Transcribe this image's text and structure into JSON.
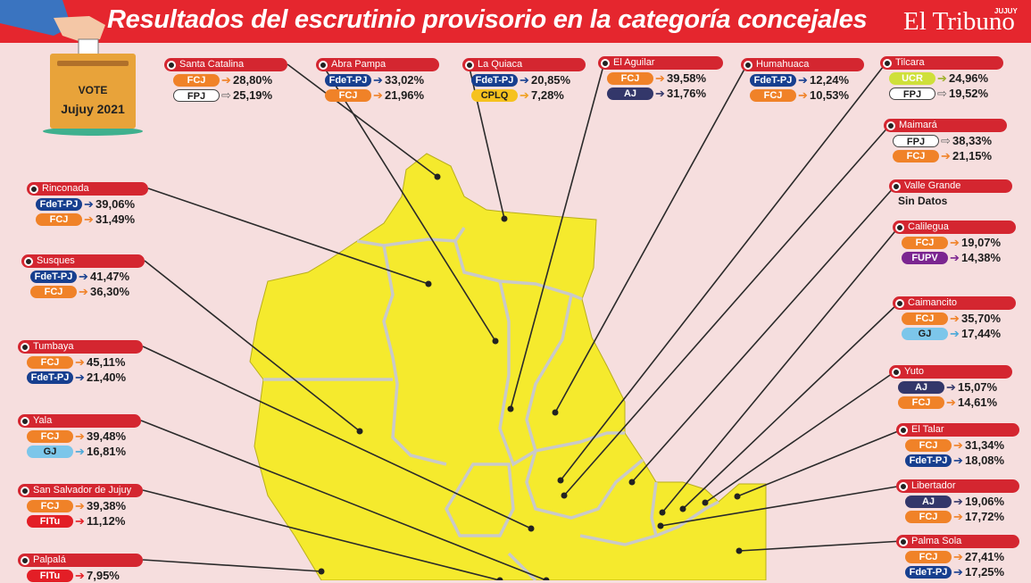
{
  "header": {
    "title": "Resultados del escrutinio provisorio en la categoría concejales",
    "brand": "El Tribuno",
    "brand_region": "JUJUY"
  },
  "vote_box": {
    "line1": "VOTE",
    "line2": "Jujuy 2021"
  },
  "colors": {
    "header_red": "#e5262e",
    "map_yellow": "#f5ea2d",
    "FCJ": "#f08228",
    "FdeT-PJ": "#173f8f",
    "FPJ": "#ffffff",
    "CPLQ": "#f6c21e",
    "AJ": "#33376a",
    "UCR": "#cfe03a",
    "FUPV": "#7b2590",
    "GJ": "#7cc6ea",
    "FITu": "#e31e26"
  },
  "municipios": [
    {
      "name": "Santa Catalina",
      "results": [
        {
          "party": "FCJ",
          "pct": "28,80%"
        },
        {
          "party": "FPJ",
          "pct": "25,19%"
        }
      ]
    },
    {
      "name": "Abra Pampa",
      "results": [
        {
          "party": "FdeT-PJ",
          "pct": "33,02%"
        },
        {
          "party": "FCJ",
          "pct": "21,96%"
        }
      ]
    },
    {
      "name": "La Quiaca",
      "results": [
        {
          "party": "FdeT-PJ",
          "pct": "20,85%"
        },
        {
          "party": "CPLQ",
          "pct": "7,28%"
        }
      ]
    },
    {
      "name": "El Aguilar",
      "results": [
        {
          "party": "FCJ",
          "pct": "39,58%"
        },
        {
          "party": "AJ",
          "pct": "31,76%"
        }
      ]
    },
    {
      "name": "Humahuaca",
      "results": [
        {
          "party": "FdeT-PJ",
          "pct": "12,24%"
        },
        {
          "party": "FCJ",
          "pct": "10,53%"
        }
      ]
    },
    {
      "name": "Tilcara",
      "results": [
        {
          "party": "UCR",
          "pct": "24,96%"
        },
        {
          "party": "FPJ",
          "pct": "19,52%"
        }
      ]
    },
    {
      "name": "Maimará",
      "results": [
        {
          "party": "FPJ",
          "pct": "38,33%"
        },
        {
          "party": "FCJ",
          "pct": "21,15%"
        }
      ]
    },
    {
      "name": "Valle Grande",
      "results": [],
      "note": "Sin Datos"
    },
    {
      "name": "Calilegua",
      "results": [
        {
          "party": "FCJ",
          "pct": "19,07%"
        },
        {
          "party": "FUPV",
          "pct": "14,38%"
        }
      ]
    },
    {
      "name": "Caimancito",
      "results": [
        {
          "party": "FCJ",
          "pct": "35,70%"
        },
        {
          "party": "GJ",
          "pct": "17,44%"
        }
      ]
    },
    {
      "name": "Yuto",
      "results": [
        {
          "party": "AJ",
          "pct": "15,07%"
        },
        {
          "party": "FCJ",
          "pct": "14,61%"
        }
      ]
    },
    {
      "name": "El Talar",
      "results": [
        {
          "party": "FCJ",
          "pct": "31,34%"
        },
        {
          "party": "FdeT-PJ",
          "pct": "18,08%"
        }
      ]
    },
    {
      "name": "Libertador",
      "results": [
        {
          "party": "AJ",
          "pct": "19,06%"
        },
        {
          "party": "FCJ",
          "pct": "17,72%"
        }
      ]
    },
    {
      "name": "Palma Sola",
      "results": [
        {
          "party": "FCJ",
          "pct": "27,41%"
        },
        {
          "party": "FdeT-PJ",
          "pct": "17,25%"
        }
      ]
    },
    {
      "name": "Rinconada",
      "results": [
        {
          "party": "FdeT-PJ",
          "pct": "39,06%"
        },
        {
          "party": "FCJ",
          "pct": "31,49%"
        }
      ]
    },
    {
      "name": "Susques",
      "results": [
        {
          "party": "FdeT-PJ",
          "pct": "41,47%"
        },
        {
          "party": "FCJ",
          "pct": "36,30%"
        }
      ]
    },
    {
      "name": "Tumbaya",
      "results": [
        {
          "party": "FCJ",
          "pct": "45,11%"
        },
        {
          "party": "FdeT-PJ",
          "pct": "21,40%"
        }
      ]
    },
    {
      "name": "Yala",
      "results": [
        {
          "party": "FCJ",
          "pct": "39,48%"
        },
        {
          "party": "GJ",
          "pct": "16,81%"
        }
      ]
    },
    {
      "name": "San Salvador de Jujuy",
      "results": [
        {
          "party": "FCJ",
          "pct": "39,38%"
        },
        {
          "party": "FITu",
          "pct": "11,12%"
        }
      ]
    },
    {
      "name": "Palpalá",
      "results": [
        {
          "party": "FITu",
          "pct": "7,95%"
        }
      ]
    }
  ]
}
